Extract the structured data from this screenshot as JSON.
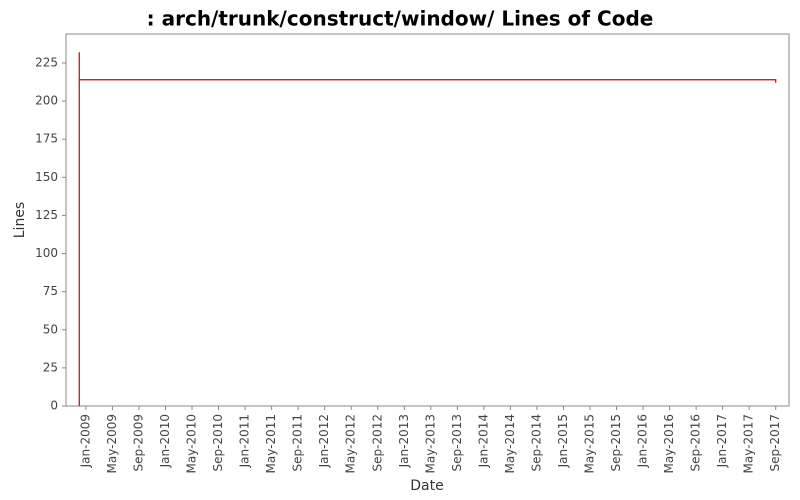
{
  "chart_data": {
    "type": "line",
    "title": ": arch/trunk/construct/window/ Lines of Code",
    "x_label": "Date",
    "y_label": "Lines",
    "x": [
      "2008-12",
      "2008-12",
      "2008-12",
      "2017-09",
      "2017-09"
    ],
    "series": [
      {
        "name": "Lines",
        "color": "#cc0000",
        "values": [
          0,
          232,
          214,
          214,
          212
        ]
      }
    ],
    "xlim": [
      "2008-10",
      "2017-11"
    ],
    "xticks": [
      {
        "value": "2009-01",
        "label": "Jan-2009"
      },
      {
        "value": "2009-05",
        "label": "May-2009"
      },
      {
        "value": "2009-09",
        "label": "Sep-2009"
      },
      {
        "value": "2010-01",
        "label": "Jan-2010"
      },
      {
        "value": "2010-05",
        "label": "May-2010"
      },
      {
        "value": "2010-09",
        "label": "Sep-2010"
      },
      {
        "value": "2011-01",
        "label": "Jan-2011"
      },
      {
        "value": "2011-05",
        "label": "May-2011"
      },
      {
        "value": "2011-09",
        "label": "Sep-2011"
      },
      {
        "value": "2012-01",
        "label": "Jan-2012"
      },
      {
        "value": "2012-05",
        "label": "May-2012"
      },
      {
        "value": "2012-09",
        "label": "Sep-2012"
      },
      {
        "value": "2013-01",
        "label": "Jan-2013"
      },
      {
        "value": "2013-05",
        "label": "May-2013"
      },
      {
        "value": "2013-09",
        "label": "Sep-2013"
      },
      {
        "value": "2014-01",
        "label": "Jan-2014"
      },
      {
        "value": "2014-05",
        "label": "May-2014"
      },
      {
        "value": "2014-09",
        "label": "Sep-2014"
      },
      {
        "value": "2015-01",
        "label": "Jan-2015"
      },
      {
        "value": "2015-05",
        "label": "May-2015"
      },
      {
        "value": "2015-09",
        "label": "Sep-2015"
      },
      {
        "value": "2016-01",
        "label": "Jan-2016"
      },
      {
        "value": "2016-05",
        "label": "May-2016"
      },
      {
        "value": "2016-09",
        "label": "Sep-2016"
      },
      {
        "value": "2017-01",
        "label": "Jan-2017"
      },
      {
        "value": "2017-05",
        "label": "May-2017"
      },
      {
        "value": "2017-09",
        "label": "Sep-2017"
      }
    ],
    "ylim": [
      0,
      244
    ],
    "yticks": [
      0,
      25,
      50,
      75,
      100,
      125,
      150,
      175,
      200,
      225
    ],
    "grid": false
  }
}
